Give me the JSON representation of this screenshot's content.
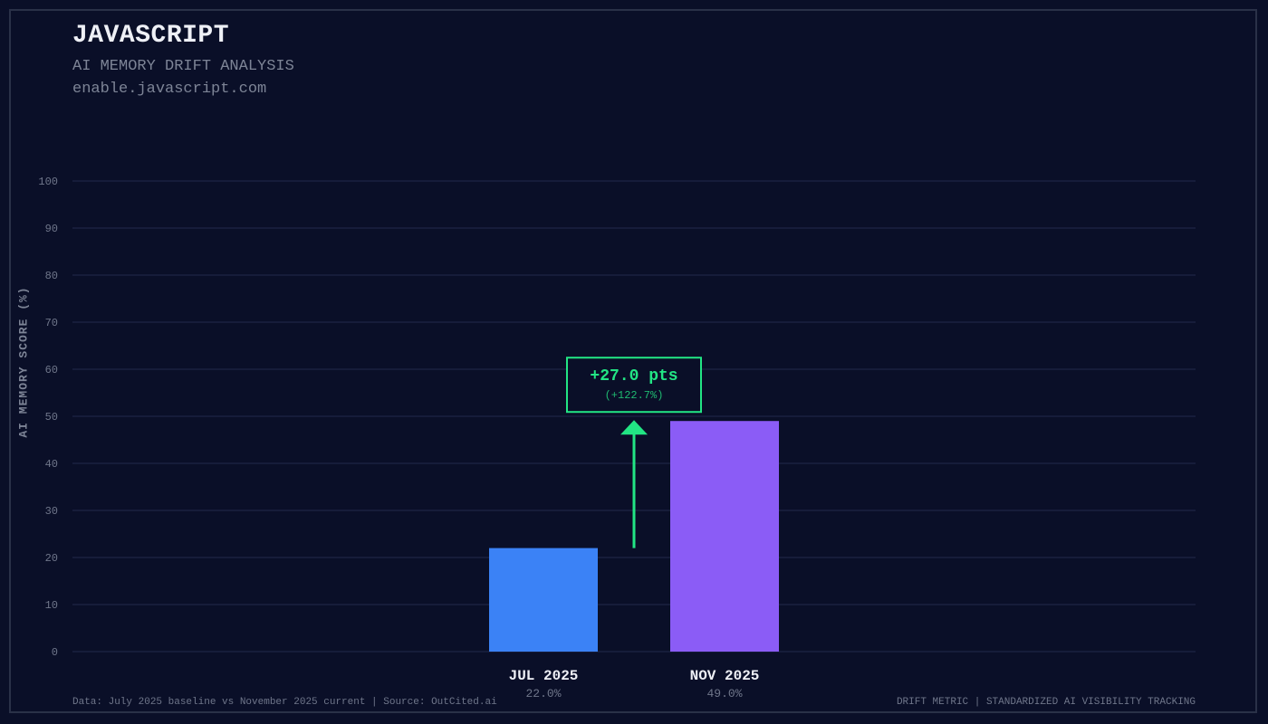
{
  "header": {
    "title": "JAVASCRIPT",
    "subtitle": "AI MEMORY DRIFT ANALYSIS",
    "domain": "enable.javascript.com"
  },
  "footer": {
    "left": "Data: July 2025 baseline vs November 2025 current | Source: OutCited.ai",
    "right": "DRIFT METRIC | STANDARDIZED AI VISIBILITY TRACKING"
  },
  "chart_data": {
    "type": "bar",
    "categories": [
      "JUL 2025",
      "NOV 2025"
    ],
    "values": [
      22.0,
      49.0
    ],
    "value_labels": [
      "22.0%",
      "49.0%"
    ],
    "colors": [
      "#3b82f6",
      "#8b5cf6"
    ],
    "ylabel": "AI MEMORY SCORE (%)",
    "ylim": [
      0,
      100
    ],
    "yticks": [
      0,
      10,
      20,
      30,
      40,
      50,
      60,
      70,
      80,
      90,
      100
    ],
    "grid": true,
    "annotation": {
      "text": "+27.0 pts",
      "subtext": "(+122.7%)",
      "color": "#22e584"
    }
  }
}
